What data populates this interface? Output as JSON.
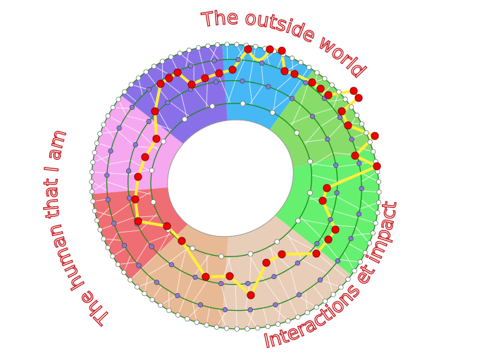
{
  "labels": {
    "top": "The outside world",
    "left": "The human that I am",
    "bottom_right": "Interactions et impact"
  },
  "colors": {
    "label_outline": "#c4161c",
    "sector_colors": [
      "#45b8f5",
      "#88dd6a",
      "#66f070",
      "#e8cdb8",
      "#e8b995",
      "#ef6e73",
      "#f5a8f0",
      "#8a70e8"
    ],
    "ring_lines": "#1a8a1a",
    "path": "#ffef3a",
    "path_nodes": "#ee0000",
    "mid_nodes": "#8878e0",
    "edge_nodes": "#ffffff"
  }
}
